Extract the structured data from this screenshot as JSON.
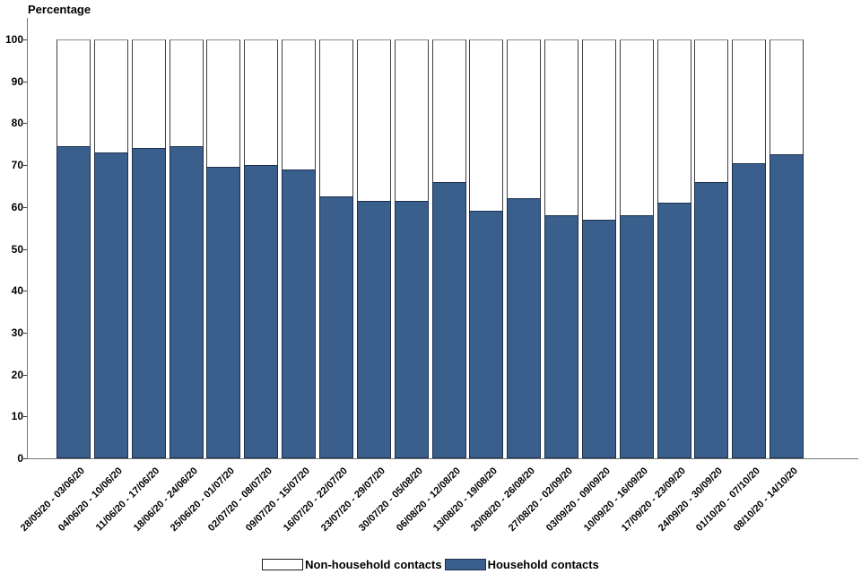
{
  "chart_data": {
    "type": "bar",
    "stacked": true,
    "title": "Percentage",
    "ylabel": "Percentage",
    "xlabel": "",
    "ylim": [
      0,
      100
    ],
    "y_ticks": [
      0,
      10,
      20,
      30,
      40,
      50,
      60,
      70,
      80,
      90,
      100
    ],
    "grid": false,
    "legend_position": "bottom",
    "categories": [
      "28/05/20 - 03/06/20",
      "04/06/20 - 10/06/20",
      "11/06/20 - 17/06/20",
      "18/06/20 - 24/06/20",
      "25/06/20 - 01/07/20",
      "02/07/20 - 08/07/20",
      "09/07/20 - 15/07/20",
      "16/07/20 - 22/07/20",
      "23/07/20 - 29/07/20",
      "30/07/20 - 05/08/20",
      "06/08/20 - 12/08/20",
      "13/08/20 - 19/08/20",
      "20/08/20 - 26/08/20",
      "27/08/20 - 02/09/20",
      "03/09/20 - 09/09/20",
      "10/09/20 - 16/09/20",
      "17/09/20 - 23/09/20",
      "24/09/20 - 30/09/20",
      "01/10/20 - 07/10/20",
      "08/10/20 - 14/10/20"
    ],
    "series": [
      {
        "name": "Household contacts",
        "color": "#3A5F8C",
        "border_color": "#1C2F4D",
        "values": [
          74.5,
          73,
          74,
          74.5,
          69.5,
          70,
          69,
          62.5,
          61.5,
          61.5,
          66,
          59,
          62,
          58,
          57,
          58,
          61,
          66,
          70.5,
          72.5
        ]
      },
      {
        "name": "Non-household contacts",
        "color": "#FFFFFF",
        "border_color": "#3F3F3F",
        "values": [
          25.5,
          27,
          26,
          25.5,
          30.5,
          30,
          31,
          37.5,
          38.5,
          38.5,
          34,
          41,
          38,
          42,
          43,
          42,
          39,
          34,
          29.5,
          27.5
        ]
      }
    ]
  },
  "legend": {
    "items": [
      {
        "label": "Non-household contacts",
        "color": "#FFFFFF"
      },
      {
        "label": "Household contacts",
        "color": "#3A5F8C"
      }
    ]
  },
  "colors": {
    "axis_line": "#757575",
    "tick_mark": "#3c3c3c",
    "label_text": "#000000"
  }
}
